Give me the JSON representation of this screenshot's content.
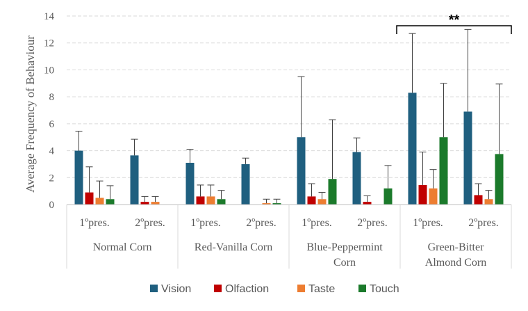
{
  "chart_data": {
    "type": "bar",
    "ylabel": "Average Frequency of Behaviour",
    "ylim": [
      0,
      14
    ],
    "yticks": [
      "0",
      "2",
      "4",
      "6",
      "8",
      "10",
      "12",
      "14"
    ],
    "grid": true,
    "legend_position": "bottom",
    "groups": [
      "Normal Corn",
      "Red-Vanilla Corn",
      "Blue-Peppermint Corn",
      "Green-Bitter Almond Corn"
    ],
    "group_label_lines": [
      [
        "Normal Corn"
      ],
      [
        "Red-Vanilla Corn"
      ],
      [
        "Blue-Peppermint",
        "Corn"
      ],
      [
        "Green-Bitter",
        "Almond Corn"
      ]
    ],
    "subcategories": [
      "1ºpres.",
      "2ºpres."
    ],
    "series": [
      {
        "name": "Vision",
        "color": "#1F5F7F",
        "values": [
          4.0,
          3.65,
          3.1,
          3.0,
          5.0,
          3.9,
          8.3,
          6.9
        ],
        "error_upper": [
          5.45,
          4.85,
          4.1,
          3.45,
          9.5,
          4.95,
          12.7,
          13.0
        ]
      },
      {
        "name": "Olfaction",
        "color": "#C00000",
        "values": [
          0.9,
          0.2,
          0.6,
          0.0,
          0.6,
          0.2,
          1.45,
          0.7
        ],
        "error_upper": [
          2.8,
          0.6,
          1.45,
          null,
          1.55,
          0.65,
          3.9,
          1.55
        ]
      },
      {
        "name": "Taste",
        "color": "#ED7D31",
        "values": [
          0.5,
          0.2,
          0.6,
          0.1,
          0.4,
          0.0,
          1.2,
          0.4
        ],
        "error_upper": [
          1.75,
          0.6,
          1.45,
          0.4,
          0.9,
          null,
          2.6,
          1.05
        ]
      },
      {
        "name": "Touch",
        "color": "#1B7A2B",
        "values": [
          0.4,
          0.0,
          0.4,
          0.1,
          1.9,
          1.2,
          5.0,
          3.75
        ],
        "error_upper": [
          1.4,
          null,
          1.05,
          0.4,
          6.3,
          2.9,
          9.0,
          8.95
        ]
      }
    ],
    "annotations": [
      {
        "text": "**",
        "group": "Green-Bitter Almond Corn",
        "bracket_y": 14.0
      }
    ]
  }
}
